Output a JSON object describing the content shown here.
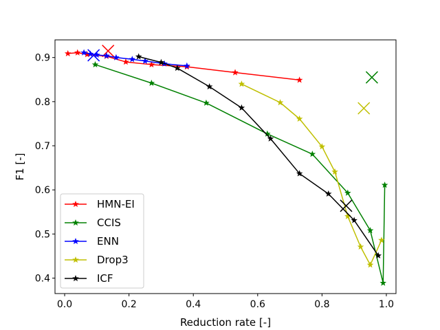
{
  "chart_data": {
    "type": "line",
    "title": "",
    "xlabel": "Reduction rate [-]",
    "ylabel": "F1 [-]",
    "xlim": [
      -0.03,
      1.03
    ],
    "ylim": [
      0.365,
      0.94
    ],
    "xticks": [
      0.0,
      0.2,
      0.4,
      0.6,
      0.8,
      1.0
    ],
    "xtick_labels": [
      "0.0",
      "0.2",
      "0.4",
      "0.6",
      "0.8",
      "1.0"
    ],
    "yticks": [
      0.4,
      0.5,
      0.6,
      0.7,
      0.8,
      0.9
    ],
    "ytick_labels": [
      "0.4",
      "0.5",
      "0.6",
      "0.7",
      "0.8",
      "0.9"
    ],
    "grid": false,
    "legend_position": "lower-left",
    "series": [
      {
        "name": "HMN-EI",
        "color": "#ff0000",
        "x": [
          0.01,
          0.04,
          0.07,
          0.13,
          0.19,
          0.27,
          0.38,
          0.53,
          0.73
        ],
        "y": [
          0.909,
          0.911,
          0.907,
          0.903,
          0.89,
          0.884,
          0.879,
          0.866,
          0.849
        ],
        "reference": {
          "x": 0.135,
          "y": 0.915
        }
      },
      {
        "name": "CCIS",
        "color": "#008000",
        "x": [
          0.095,
          0.27,
          0.44,
          0.63,
          0.77,
          0.88,
          0.95,
          0.99,
          0.995
        ],
        "y": [
          0.884,
          0.842,
          0.797,
          0.727,
          0.681,
          0.593,
          0.508,
          0.389,
          0.611
        ],
        "reference": {
          "x": 0.955,
          "y": 0.855
        }
      },
      {
        "name": "ENN",
        "color": "#0000ff",
        "x": [
          0.06,
          0.08,
          0.1,
          0.13,
          0.16,
          0.21,
          0.25,
          0.31,
          0.38
        ],
        "y": [
          0.911,
          0.908,
          0.906,
          0.904,
          0.9,
          0.896,
          0.892,
          0.886,
          0.881
        ],
        "reference": {
          "x": 0.09,
          "y": 0.905
        }
      },
      {
        "name": "Drop3",
        "color": "#bfbf00",
        "x": [
          0.55,
          0.67,
          0.73,
          0.8,
          0.84,
          0.88,
          0.92,
          0.95,
          0.985
        ],
        "y": [
          0.84,
          0.798,
          0.761,
          0.698,
          0.641,
          0.54,
          0.471,
          0.43,
          0.486
        ],
        "reference": {
          "x": 0.93,
          "y": 0.785
        }
      },
      {
        "name": "ICF",
        "color": "#000000",
        "x": [
          0.23,
          0.3,
          0.35,
          0.45,
          0.55,
          0.64,
          0.73,
          0.82,
          0.9,
          0.975
        ],
        "y": [
          0.902,
          0.889,
          0.876,
          0.834,
          0.786,
          0.716,
          0.637,
          0.591,
          0.531,
          0.451
        ],
        "reference": {
          "x": 0.875,
          "y": 0.564
        }
      }
    ]
  }
}
